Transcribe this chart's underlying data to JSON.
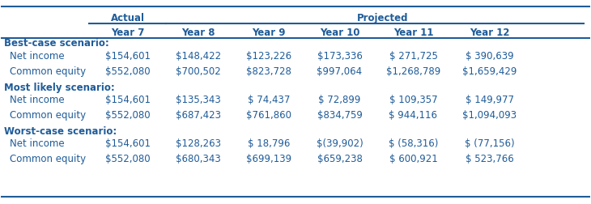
{
  "header_actual": "Actual",
  "header_projected": "Projected",
  "col_headers": [
    "Year 7",
    "Year 8",
    "Year 9",
    "Year 10",
    "Year 11",
    "Year 12"
  ],
  "sections": [
    {
      "label": "Best-case scenario:",
      "rows": [
        {
          "name": "Net income",
          "values": [
            "$154,601",
            "$148,422",
            "$123,226",
            "$173,336",
            "$ 271,725",
            "$ 390,639"
          ]
        },
        {
          "name": "Common equity",
          "values": [
            "$552,080",
            "$700,502",
            "$823,728",
            "$997,064",
            "$1,268,789",
            "$1,659,429"
          ]
        }
      ]
    },
    {
      "label": "Most likely scenario:",
      "rows": [
        {
          "name": "Net income",
          "values": [
            "$154,601",
            "$135,343",
            "$ 74,437",
            "$ 72,899",
            "$ 109,357",
            "$ 149,977"
          ]
        },
        {
          "name": "Common equity",
          "values": [
            "$552,080",
            "$687,423",
            "$761,860",
            "$834,759",
            "$ 944,116",
            "$1,094,093"
          ]
        }
      ]
    },
    {
      "label": "Worst-case scenario:",
      "rows": [
        {
          "name": "Net income",
          "values": [
            "$154,601",
            "$128,263",
            "$ 18,796",
            "$(39,902)",
            "$ (58,316)",
            "$ (77,156)"
          ]
        },
        {
          "name": "Common equity",
          "values": [
            "$552,080",
            "$680,343",
            "$699,139",
            "$659,238",
            "$ 600,921",
            "$ 523,766"
          ]
        }
      ]
    }
  ],
  "top_line_color": "#1F5C99",
  "header_line_color": "#1F5C99",
  "bottom_line_color": "#1F5C99",
  "header_text_color": "#1F5C99",
  "label_text_color": "#1F5C99",
  "data_text_color": "#1F5C99",
  "row_name_color": "#1F5C99",
  "bg_color": "white",
  "bold_label_fontsize": 8.5,
  "data_fontsize": 8.5,
  "header_fontsize": 8.5
}
